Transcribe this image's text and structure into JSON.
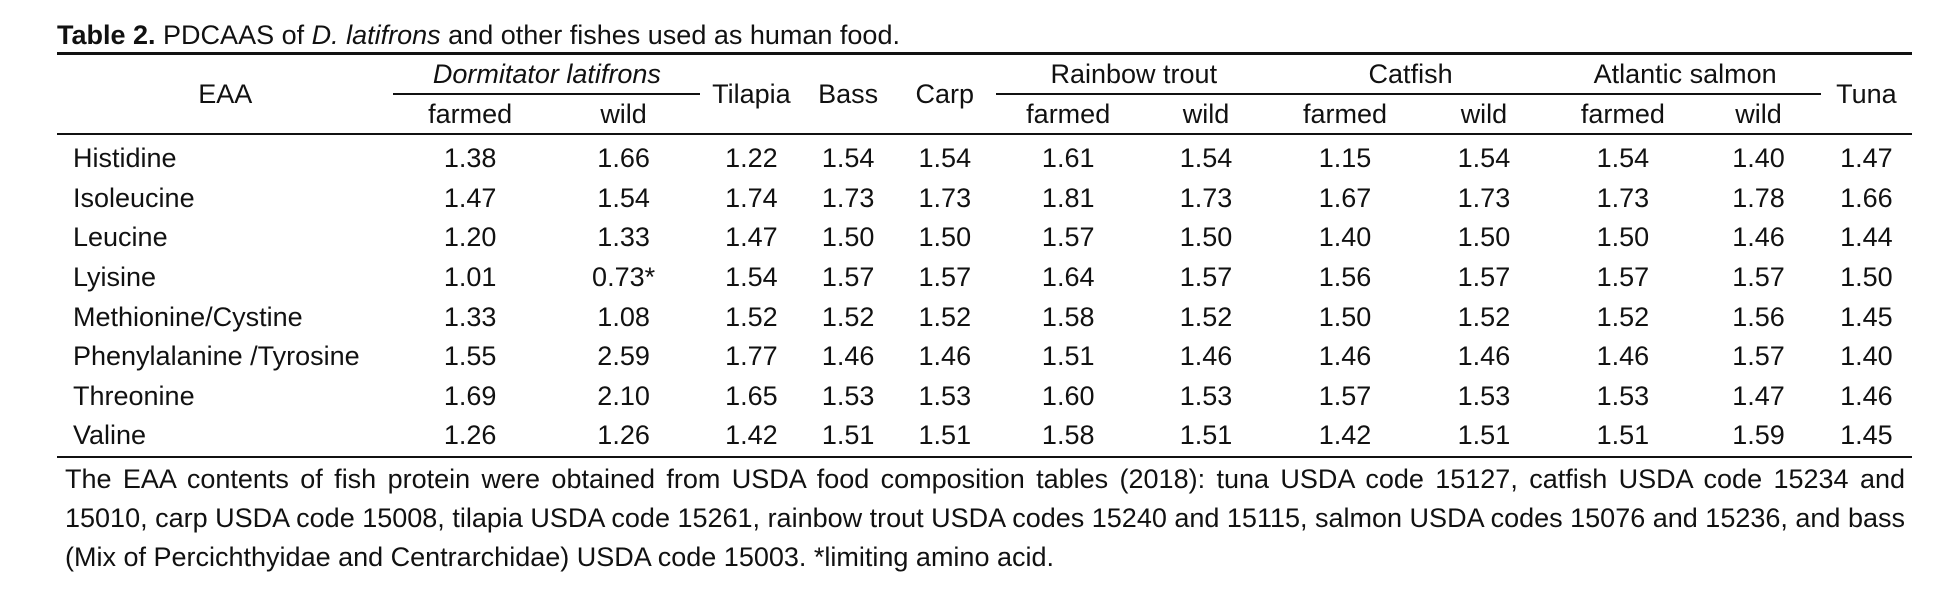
{
  "caption": {
    "label": "Table 2.",
    "text_before": " PDCAAS of ",
    "species": "D. latifrons",
    "text_after": " and other fishes used as human food."
  },
  "header": {
    "eaa": "EAA",
    "dormitator": "Dormitator latifrons",
    "tilapia": "Tilapia",
    "bass": "Bass",
    "carp": "Carp",
    "rainbow_trout": "Rainbow trout",
    "catfish": "Catfish",
    "atlantic_salmon": "Atlantic salmon",
    "tuna": "Tuna",
    "farmed": "farmed",
    "wild": "wild"
  },
  "rows": [
    {
      "eaa": "Histidine",
      "d_farmed": "1.38",
      "d_wild": "1.66",
      "tilapia": "1.22",
      "bass": "1.54",
      "carp": "1.54",
      "rt_farmed": "1.61",
      "rt_wild": "1.54",
      "cf_farmed": "1.15",
      "cf_wild": "1.54",
      "as_farmed": "1.54",
      "as_wild": "1.40",
      "tuna": "1.47"
    },
    {
      "eaa": "Isoleucine",
      "d_farmed": "1.47",
      "d_wild": "1.54",
      "tilapia": "1.74",
      "bass": "1.73",
      "carp": "1.73",
      "rt_farmed": "1.81",
      "rt_wild": "1.73",
      "cf_farmed": "1.67",
      "cf_wild": "1.73",
      "as_farmed": "1.73",
      "as_wild": "1.78",
      "tuna": "1.66"
    },
    {
      "eaa": "Leucine",
      "d_farmed": "1.20",
      "d_wild": "1.33",
      "tilapia": "1.47",
      "bass": "1.50",
      "carp": "1.50",
      "rt_farmed": "1.57",
      "rt_wild": "1.50",
      "cf_farmed": "1.40",
      "cf_wild": "1.50",
      "as_farmed": "1.50",
      "as_wild": "1.46",
      "tuna": "1.44"
    },
    {
      "eaa": "Lyisine",
      "d_farmed": "1.01",
      "d_wild": "0.73*",
      "tilapia": "1.54",
      "bass": "1.57",
      "carp": "1.57",
      "rt_farmed": "1.64",
      "rt_wild": "1.57",
      "cf_farmed": "1.56",
      "cf_wild": "1.57",
      "as_farmed": "1.57",
      "as_wild": "1.57",
      "tuna": "1.50"
    },
    {
      "eaa": "Methionine/Cystine",
      "d_farmed": "1.33",
      "d_wild": "1.08",
      "tilapia": "1.52",
      "bass": "1.52",
      "carp": "1.52",
      "rt_farmed": "1.58",
      "rt_wild": "1.52",
      "cf_farmed": "1.50",
      "cf_wild": "1.52",
      "as_farmed": "1.52",
      "as_wild": "1.56",
      "tuna": "1.45"
    },
    {
      "eaa": "Phenylalanine /Tyrosine",
      "d_farmed": "1.55",
      "d_wild": "2.59",
      "tilapia": "1.77",
      "bass": "1.46",
      "carp": "1.46",
      "rt_farmed": "1.51",
      "rt_wild": "1.46",
      "cf_farmed": "1.46",
      "cf_wild": "1.46",
      "as_farmed": "1.46",
      "as_wild": "1.57",
      "tuna": "1.40"
    },
    {
      "eaa": "Threonine",
      "d_farmed": "1.69",
      "d_wild": "2.10",
      "tilapia": "1.65",
      "bass": "1.53",
      "carp": "1.53",
      "rt_farmed": "1.60",
      "rt_wild": "1.53",
      "cf_farmed": "1.57",
      "cf_wild": "1.53",
      "as_farmed": "1.53",
      "as_wild": "1.47",
      "tuna": "1.46"
    },
    {
      "eaa": "Valine",
      "d_farmed": "1.26",
      "d_wild": "1.26",
      "tilapia": "1.42",
      "bass": "1.51",
      "carp": "1.51",
      "rt_farmed": "1.58",
      "rt_wild": "1.51",
      "cf_farmed": "1.42",
      "cf_wild": "1.51",
      "as_farmed": "1.51",
      "as_wild": "1.59",
      "tuna": "1.45"
    }
  ],
  "footnote": "The EAA contents of fish protein were obtained from USDA food composition tables (2018): tuna USDA code 15127, catfish USDA code 15234 and 15010, carp USDA code 15008, tilapia USDA code 15261, rainbow trout USDA codes 15240 and 15115, salmon USDA codes 15076 and 15236, and bass (Mix of Percichthyidae and Centrarchidae) USDA code 15003. *limiting amino acid."
}
